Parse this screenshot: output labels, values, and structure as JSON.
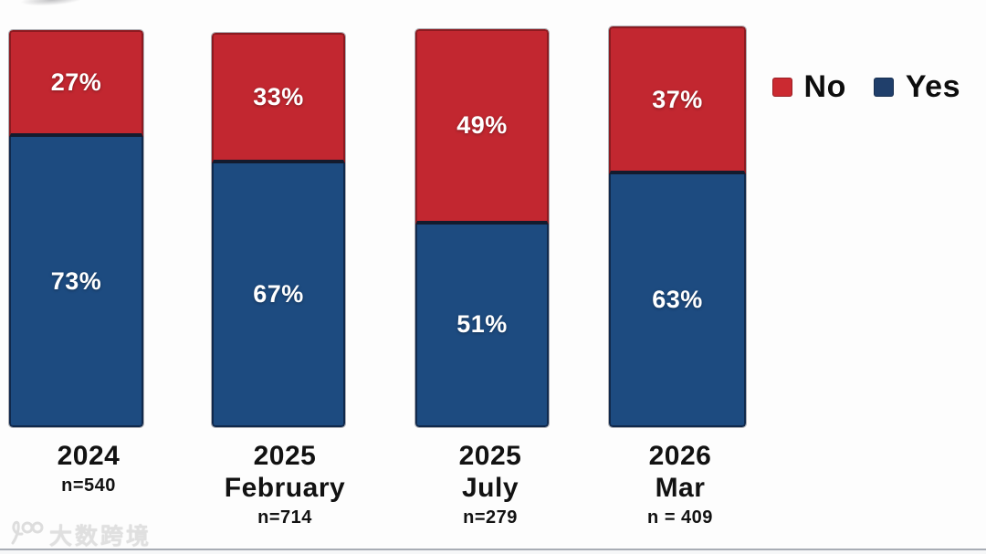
{
  "chart_data": {
    "type": "bar",
    "stacked": true,
    "title": "",
    "unit": "%",
    "ylim": [
      0,
      100
    ],
    "grid": false,
    "legend_position": "top-right",
    "categories": [
      {
        "lines": [
          "2024"
        ],
        "n_label": "n=540"
      },
      {
        "lines": [
          "2025",
          "February"
        ],
        "n_label": "n=714"
      },
      {
        "lines": [
          "2025",
          "July"
        ],
        "n_label": "n=279"
      },
      {
        "lines": [
          "2026",
          "Mar"
        ],
        "n_label": "n = 409"
      }
    ],
    "series": [
      {
        "name": "No",
        "color": "#c22730",
        "values": [
          27,
          33,
          49,
          37
        ]
      },
      {
        "name": "Yes",
        "color": "#1d4b80",
        "values": [
          73,
          67,
          51,
          63
        ]
      }
    ]
  },
  "legend": {
    "items": [
      {
        "label": "No",
        "swatch_color": "#cb2a31"
      },
      {
        "label": "Yes",
        "swatch_color": "#203f6b"
      }
    ]
  },
  "watermark": {
    "logo_icon": "hundred-loop-logo",
    "text": "大数跨境"
  }
}
